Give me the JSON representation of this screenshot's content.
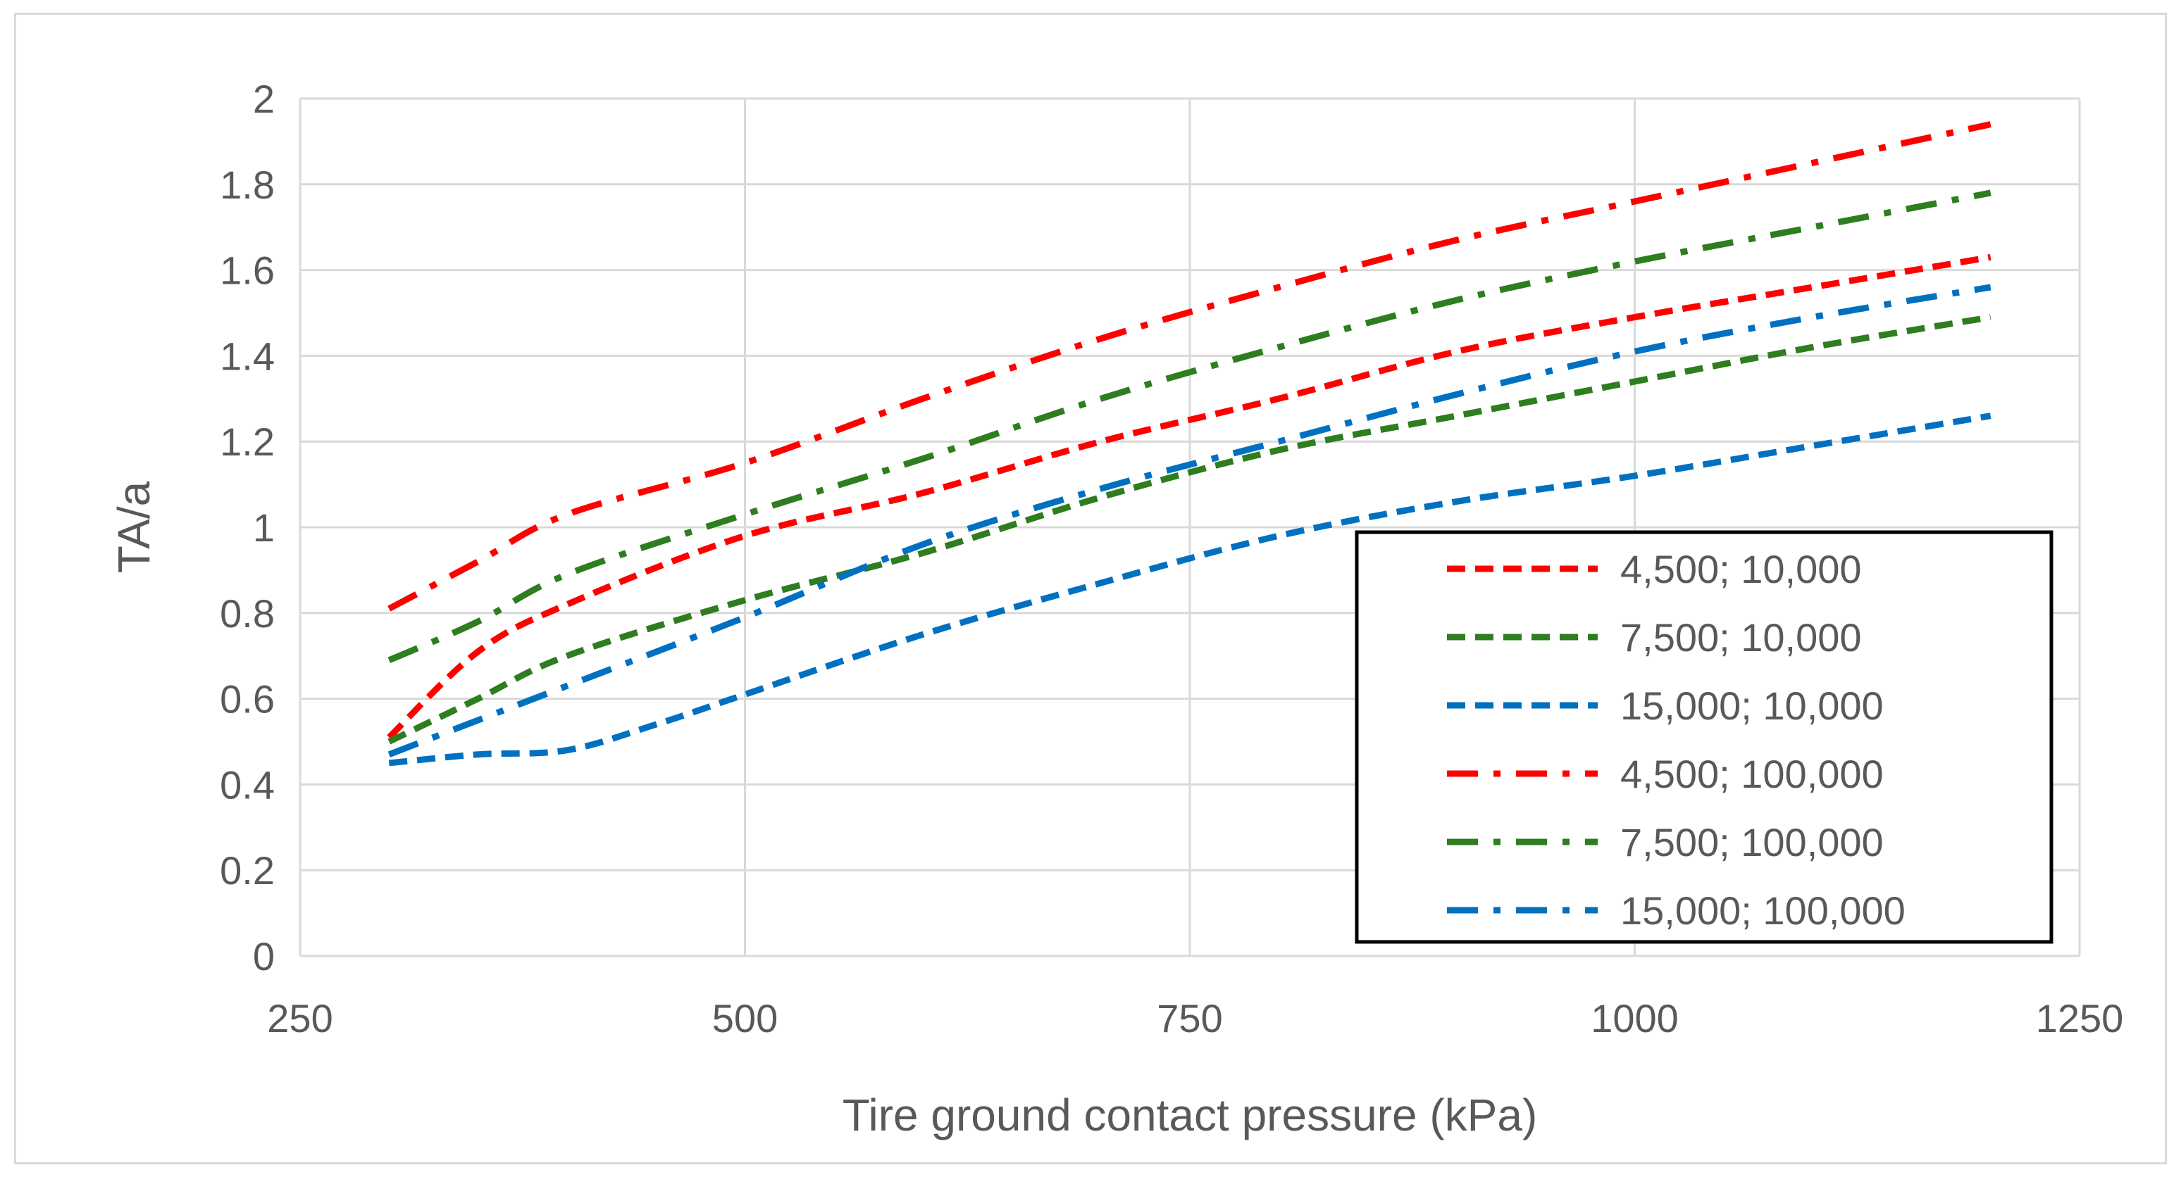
{
  "chart_data": {
    "type": "line",
    "title": "",
    "xlabel": "Tire ground contact pressure (kPa)",
    "ylabel": "TA/a",
    "xlim": [
      250,
      1250
    ],
    "ylim": [
      0,
      2
    ],
    "xticks": [
      250,
      500,
      750,
      1000,
      1250
    ],
    "yticks": [
      0,
      0.2,
      0.4,
      0.6,
      0.8,
      1,
      1.2,
      1.4,
      1.6,
      1.8,
      2
    ],
    "grid": true,
    "legend_position": "bottom-right",
    "series": [
      {
        "name": "4,500; 10,000",
        "color": "#ff0000",
        "dash": "dashed",
        "x": [
          300,
          350,
          400,
          500,
          600,
          700,
          800,
          900,
          1000,
          1100,
          1200
        ],
        "y": [
          0.51,
          0.71,
          0.82,
          0.98,
          1.08,
          1.2,
          1.3,
          1.41,
          1.49,
          1.56,
          1.63
        ]
      },
      {
        "name": "7,500; 10,000",
        "color": "#2e7d1f",
        "dash": "dashed",
        "x": [
          300,
          350,
          400,
          500,
          600,
          700,
          800,
          900,
          1000,
          1100,
          1200
        ],
        "y": [
          0.5,
          0.6,
          0.7,
          0.83,
          0.94,
          1.07,
          1.18,
          1.26,
          1.34,
          1.42,
          1.49
        ]
      },
      {
        "name": "15,000; 10,000",
        "color": "#0070c0",
        "dash": "dashed",
        "x": [
          300,
          350,
          400,
          450,
          500,
          600,
          700,
          800,
          900,
          1000,
          1100,
          1200
        ],
        "y": [
          0.45,
          0.47,
          0.48,
          0.54,
          0.61,
          0.75,
          0.87,
          0.98,
          1.06,
          1.12,
          1.19,
          1.26
        ]
      },
      {
        "name": "4,500; 100,000",
        "color": "#ff0000",
        "dash": "dashdot",
        "x": [
          300,
          350,
          400,
          500,
          600,
          700,
          800,
          900,
          1000,
          1100,
          1200
        ],
        "y": [
          0.81,
          0.92,
          1.03,
          1.15,
          1.3,
          1.44,
          1.56,
          1.67,
          1.76,
          1.85,
          1.94
        ]
      },
      {
        "name": "7,500; 100,000",
        "color": "#2e7d1f",
        "dash": "dashdot",
        "x": [
          300,
          350,
          400,
          500,
          600,
          700,
          800,
          900,
          1000,
          1100,
          1200
        ],
        "y": [
          0.69,
          0.78,
          0.89,
          1.03,
          1.16,
          1.3,
          1.42,
          1.53,
          1.62,
          1.7,
          1.78
        ]
      },
      {
        "name": "15,000; 100,000",
        "color": "#0070c0",
        "dash": "dashdot",
        "x": [
          300,
          350,
          400,
          500,
          600,
          700,
          800,
          900,
          1000,
          1100,
          1200
        ],
        "y": [
          0.47,
          0.55,
          0.63,
          0.79,
          0.96,
          1.09,
          1.2,
          1.31,
          1.41,
          1.49,
          1.56
        ]
      }
    ]
  }
}
